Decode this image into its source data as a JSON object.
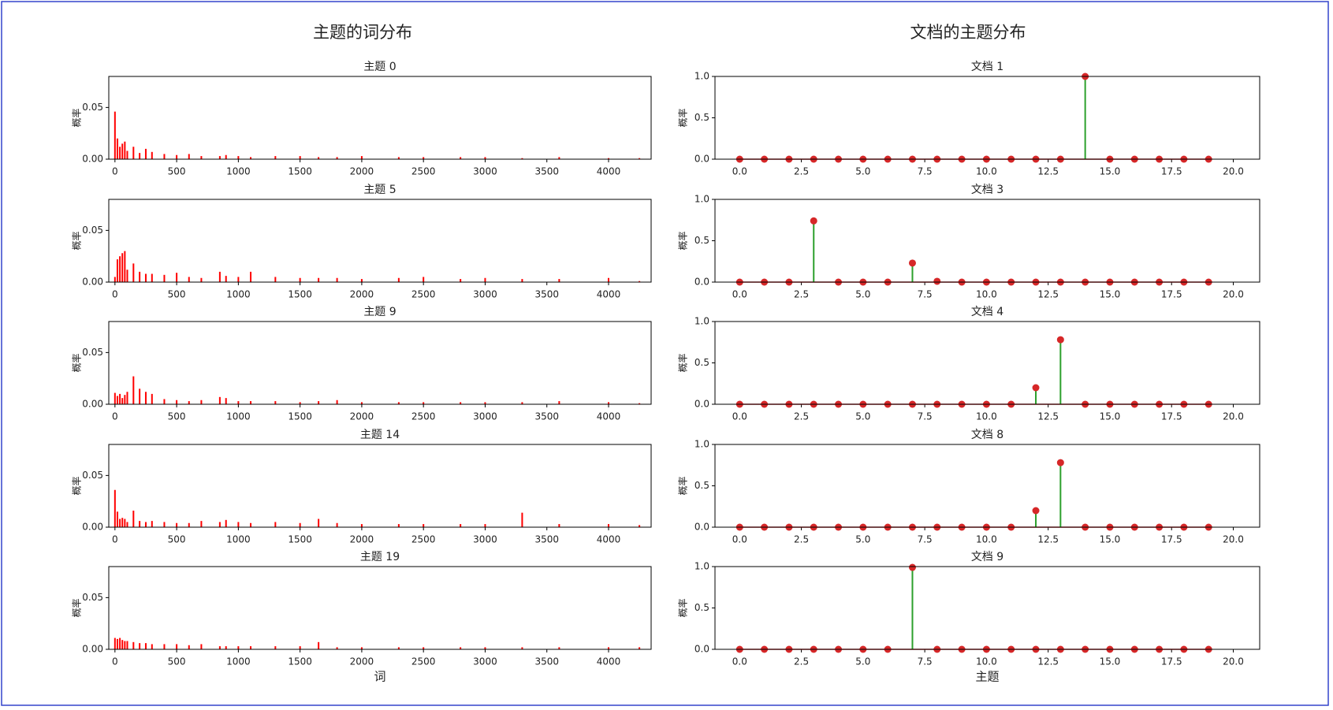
{
  "left_title": "主题的词分布",
  "right_title": "文档的主题分布",
  "chart_data": [
    {
      "type": "bar",
      "title": "主题 0",
      "ylabel": "概率",
      "color": "#ff0000",
      "xlim": [
        -50,
        4345
      ],
      "ylim": [
        0,
        0.08
      ],
      "yticks": [
        {
          "value": 0,
          "label": "0.00"
        },
        {
          "value": 0.05,
          "label": "0.05"
        }
      ],
      "xticks": [
        0,
        500,
        1000,
        1500,
        2000,
        2500,
        3000,
        3500,
        4000
      ],
      "x": [
        0,
        20,
        40,
        60,
        80,
        100,
        150,
        200,
        250,
        300,
        400,
        500,
        600,
        700,
        850,
        900,
        1000,
        1100,
        1300,
        1500,
        1650,
        1800,
        2000,
        2300,
        2500,
        2800,
        3000,
        3300,
        3600,
        4000,
        4250
      ],
      "values": [
        0.046,
        0.02,
        0.012,
        0.015,
        0.017,
        0.008,
        0.012,
        0.006,
        0.01,
        0.007,
        0.005,
        0.004,
        0.005,
        0.003,
        0.003,
        0.004,
        0.003,
        0.002,
        0.003,
        0.003,
        0.002,
        0.002,
        0.003,
        0.002,
        0.002,
        0.002,
        0.002,
        0.001,
        0.002,
        0.001,
        0.001
      ]
    },
    {
      "type": "bar",
      "title": "主题 5",
      "ylabel": "概率",
      "color": "#ff0000",
      "xlim": [
        -50,
        4345
      ],
      "ylim": [
        0,
        0.08
      ],
      "yticks": [
        {
          "value": 0,
          "label": "0.00"
        },
        {
          "value": 0.05,
          "label": "0.05"
        }
      ],
      "xticks": [
        0,
        500,
        1000,
        1500,
        2000,
        2500,
        3000,
        3500,
        4000
      ],
      "x": [
        0,
        20,
        40,
        60,
        80,
        100,
        150,
        200,
        250,
        300,
        400,
        500,
        600,
        700,
        850,
        900,
        1000,
        1100,
        1300,
        1500,
        1650,
        1800,
        2000,
        2300,
        2500,
        2800,
        3000,
        3300,
        3600,
        4000,
        4250
      ],
      "values": [
        0.005,
        0.022,
        0.025,
        0.028,
        0.03,
        0.012,
        0.018,
        0.01,
        0.008,
        0.008,
        0.007,
        0.009,
        0.005,
        0.004,
        0.01,
        0.006,
        0.005,
        0.01,
        0.005,
        0.004,
        0.004,
        0.004,
        0.003,
        0.004,
        0.005,
        0.003,
        0.004,
        0.003,
        0.003,
        0.004,
        0.001
      ]
    },
    {
      "type": "bar",
      "title": "主题 9",
      "ylabel": "概率",
      "color": "#ff0000",
      "xlim": [
        -50,
        4345
      ],
      "ylim": [
        0,
        0.08
      ],
      "yticks": [
        {
          "value": 0,
          "label": "0.00"
        },
        {
          "value": 0.05,
          "label": "0.05"
        }
      ],
      "xticks": [
        0,
        500,
        1000,
        1500,
        2000,
        2500,
        3000,
        3500,
        4000
      ],
      "x": [
        0,
        20,
        40,
        60,
        80,
        100,
        150,
        200,
        250,
        300,
        400,
        500,
        600,
        700,
        850,
        900,
        1000,
        1100,
        1300,
        1500,
        1650,
        1800,
        2000,
        2300,
        2500,
        2800,
        3000,
        3300,
        3600,
        4000,
        4250
      ],
      "values": [
        0.011,
        0.008,
        0.01,
        0.006,
        0.009,
        0.012,
        0.027,
        0.015,
        0.012,
        0.01,
        0.005,
        0.004,
        0.003,
        0.004,
        0.007,
        0.006,
        0.003,
        0.003,
        0.003,
        0.002,
        0.003,
        0.004,
        0.002,
        0.002,
        0.002,
        0.002,
        0.002,
        0.002,
        0.003,
        0.002,
        0.001
      ]
    },
    {
      "type": "bar",
      "title": "主题 14",
      "ylabel": "概率",
      "color": "#ff0000",
      "xlim": [
        -50,
        4345
      ],
      "ylim": [
        0,
        0.08
      ],
      "yticks": [
        {
          "value": 0,
          "label": "0.00"
        },
        {
          "value": 0.05,
          "label": "0.05"
        }
      ],
      "xticks": [
        0,
        500,
        1000,
        1500,
        2000,
        2500,
        3000,
        3500,
        4000
      ],
      "x": [
        0,
        20,
        40,
        60,
        80,
        100,
        150,
        200,
        250,
        300,
        400,
        500,
        600,
        700,
        850,
        900,
        1000,
        1100,
        1300,
        1500,
        1650,
        1800,
        2000,
        2300,
        2500,
        2800,
        3000,
        3300,
        3600,
        4000,
        4250
      ],
      "values": [
        0.036,
        0.015,
        0.008,
        0.009,
        0.008,
        0.005,
        0.016,
        0.006,
        0.005,
        0.006,
        0.005,
        0.004,
        0.004,
        0.006,
        0.005,
        0.007,
        0.005,
        0.004,
        0.005,
        0.004,
        0.008,
        0.004,
        0.003,
        0.003,
        0.003,
        0.003,
        0.003,
        0.014,
        0.003,
        0.003,
        0.002
      ]
    },
    {
      "type": "bar",
      "title": "主题 19",
      "ylabel": "概率",
      "xlabel": "词",
      "color": "#ff0000",
      "xlim": [
        -50,
        4345
      ],
      "ylim": [
        0,
        0.08
      ],
      "yticks": [
        {
          "value": 0,
          "label": "0.00"
        },
        {
          "value": 0.05,
          "label": "0.05"
        }
      ],
      "xticks": [
        0,
        500,
        1000,
        1500,
        2000,
        2500,
        3000,
        3500,
        4000
      ],
      "x": [
        0,
        20,
        40,
        60,
        80,
        100,
        150,
        200,
        250,
        300,
        400,
        500,
        600,
        700,
        850,
        900,
        1000,
        1100,
        1300,
        1500,
        1650,
        1800,
        2000,
        2300,
        2500,
        2800,
        3000,
        3300,
        3600,
        4000,
        4250
      ],
      "values": [
        0.011,
        0.01,
        0.011,
        0.009,
        0.008,
        0.008,
        0.007,
        0.006,
        0.006,
        0.005,
        0.005,
        0.005,
        0.004,
        0.005,
        0.003,
        0.003,
        0.003,
        0.003,
        0.003,
        0.003,
        0.007,
        0.002,
        0.002,
        0.002,
        0.002,
        0.002,
        0.002,
        0.002,
        0.002,
        0.002,
        0.002
      ]
    },
    {
      "type": "stem",
      "title": "文档 1",
      "ylabel": "概率",
      "color": "#2ca02c",
      "marker_color": "#d62728",
      "xlim": [
        -1,
        21.07
      ],
      "ylim": [
        0,
        1
      ],
      "yticks": [
        {
          "value": 0,
          "label": "0.0"
        },
        {
          "value": 0.5,
          "label": "0.5"
        },
        {
          "value": 1,
          "label": "1.0"
        }
      ],
      "xticks": [
        {
          "value": 0,
          "label": "0.0"
        },
        {
          "value": 2.5,
          "label": "2.5"
        },
        {
          "value": 5,
          "label": "5.0"
        },
        {
          "value": 7.5,
          "label": "7.5"
        },
        {
          "value": 10,
          "label": "10.0"
        },
        {
          "value": 12.5,
          "label": "12.5"
        },
        {
          "value": 15,
          "label": "15.0"
        },
        {
          "value": 17.5,
          "label": "17.5"
        },
        {
          "value": 20,
          "label": "20.0"
        }
      ],
      "x": [
        0,
        1,
        2,
        3,
        4,
        5,
        6,
        7,
        8,
        9,
        10,
        11,
        12,
        13,
        14,
        15,
        16,
        17,
        18,
        19
      ],
      "values": [
        0,
        0,
        0,
        0,
        0,
        0,
        0,
        0,
        0,
        0,
        0,
        0,
        0,
        0,
        1,
        0,
        0,
        0,
        0,
        0
      ]
    },
    {
      "type": "stem",
      "title": "文档 3",
      "ylabel": "概率",
      "color": "#2ca02c",
      "marker_color": "#d62728",
      "xlim": [
        -1,
        21.07
      ],
      "ylim": [
        0,
        1
      ],
      "yticks": [
        {
          "value": 0,
          "label": "0.0"
        },
        {
          "value": 0.5,
          "label": "0.5"
        },
        {
          "value": 1,
          "label": "1.0"
        }
      ],
      "xticks": [
        {
          "value": 0,
          "label": "0.0"
        },
        {
          "value": 2.5,
          "label": "2.5"
        },
        {
          "value": 5,
          "label": "5.0"
        },
        {
          "value": 7.5,
          "label": "7.5"
        },
        {
          "value": 10,
          "label": "10.0"
        },
        {
          "value": 12.5,
          "label": "12.5"
        },
        {
          "value": 15,
          "label": "15.0"
        },
        {
          "value": 17.5,
          "label": "17.5"
        },
        {
          "value": 20,
          "label": "20.0"
        }
      ],
      "x": [
        0,
        1,
        2,
        3,
        4,
        5,
        6,
        7,
        8,
        9,
        10,
        11,
        12,
        13,
        14,
        15,
        16,
        17,
        18,
        19
      ],
      "values": [
        0,
        0,
        0,
        0.74,
        0,
        0,
        0,
        0.23,
        0.01,
        0,
        0,
        0,
        0,
        0,
        0,
        0,
        0,
        0,
        0,
        0
      ]
    },
    {
      "type": "stem",
      "title": "文档 4",
      "ylabel": "概率",
      "color": "#2ca02c",
      "marker_color": "#d62728",
      "xlim": [
        -1,
        21.07
      ],
      "ylim": [
        0,
        1
      ],
      "yticks": [
        {
          "value": 0,
          "label": "0.0"
        },
        {
          "value": 0.5,
          "label": "0.5"
        },
        {
          "value": 1,
          "label": "1.0"
        }
      ],
      "xticks": [
        {
          "value": 0,
          "label": "0.0"
        },
        {
          "value": 2.5,
          "label": "2.5"
        },
        {
          "value": 5,
          "label": "5.0"
        },
        {
          "value": 7.5,
          "label": "7.5"
        },
        {
          "value": 10,
          "label": "10.0"
        },
        {
          "value": 12.5,
          "label": "12.5"
        },
        {
          "value": 15,
          "label": "15.0"
        },
        {
          "value": 17.5,
          "label": "17.5"
        },
        {
          "value": 20,
          "label": "20.0"
        }
      ],
      "x": [
        0,
        1,
        2,
        3,
        4,
        5,
        6,
        7,
        8,
        9,
        10,
        11,
        12,
        13,
        14,
        15,
        16,
        17,
        18,
        19
      ],
      "values": [
        0,
        0,
        0,
        0,
        0,
        0,
        0,
        0,
        0,
        0,
        0,
        0,
        0.2,
        0.78,
        0,
        0,
        0,
        0,
        0,
        0
      ]
    },
    {
      "type": "stem",
      "title": "文档 8",
      "ylabel": "概率",
      "color": "#2ca02c",
      "marker_color": "#d62728",
      "xlim": [
        -1,
        21.07
      ],
      "ylim": [
        0,
        1
      ],
      "yticks": [
        {
          "value": 0,
          "label": "0.0"
        },
        {
          "value": 0.5,
          "label": "0.5"
        },
        {
          "value": 1,
          "label": "1.0"
        }
      ],
      "xticks": [
        {
          "value": 0,
          "label": "0.0"
        },
        {
          "value": 2.5,
          "label": "2.5"
        },
        {
          "value": 5,
          "label": "5.0"
        },
        {
          "value": 7.5,
          "label": "7.5"
        },
        {
          "value": 10,
          "label": "10.0"
        },
        {
          "value": 12.5,
          "label": "12.5"
        },
        {
          "value": 15,
          "label": "15.0"
        },
        {
          "value": 17.5,
          "label": "17.5"
        },
        {
          "value": 20,
          "label": "20.0"
        }
      ],
      "x": [
        0,
        1,
        2,
        3,
        4,
        5,
        6,
        7,
        8,
        9,
        10,
        11,
        12,
        13,
        14,
        15,
        16,
        17,
        18,
        19
      ],
      "values": [
        0,
        0,
        0,
        0,
        0,
        0,
        0,
        0,
        0,
        0,
        0,
        0,
        0.2,
        0.78,
        0,
        0,
        0,
        0,
        0,
        0
      ]
    },
    {
      "type": "stem",
      "title": "文档 9",
      "ylabel": "概率",
      "xlabel": "主题",
      "color": "#2ca02c",
      "marker_color": "#d62728",
      "xlim": [
        -1,
        21.07
      ],
      "ylim": [
        0,
        1
      ],
      "yticks": [
        {
          "value": 0,
          "label": "0.0"
        },
        {
          "value": 0.5,
          "label": "0.5"
        },
        {
          "value": 1,
          "label": "1.0"
        }
      ],
      "xticks": [
        {
          "value": 0,
          "label": "0.0"
        },
        {
          "value": 2.5,
          "label": "2.5"
        },
        {
          "value": 5,
          "label": "5.0"
        },
        {
          "value": 7.5,
          "label": "7.5"
        },
        {
          "value": 10,
          "label": "10.0"
        },
        {
          "value": 12.5,
          "label": "12.5"
        },
        {
          "value": 15,
          "label": "15.0"
        },
        {
          "value": 17.5,
          "label": "17.5"
        },
        {
          "value": 20,
          "label": "20.0"
        }
      ],
      "x": [
        0,
        1,
        2,
        3,
        4,
        5,
        6,
        7,
        8,
        9,
        10,
        11,
        12,
        13,
        14,
        15,
        16,
        17,
        18,
        19
      ],
      "values": [
        0,
        0,
        0,
        0,
        0,
        0,
        0,
        0.99,
        0,
        0,
        0,
        0,
        0,
        0,
        0,
        0,
        0,
        0,
        0,
        0
      ]
    }
  ]
}
